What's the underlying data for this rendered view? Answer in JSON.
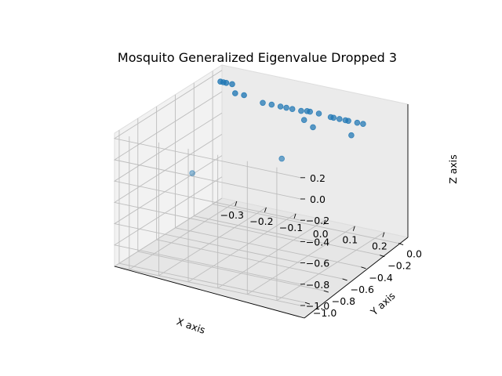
{
  "chart_data": {
    "type": "scatter",
    "title": "Mosquito Generalized Eigenvalue Dropped 3",
    "xlabel": "X axis",
    "ylabel": "Y axis",
    "zlabel": "Z axis",
    "xlim": [
      -0.35,
      0.28
    ],
    "ylim": [
      -1.05,
      0.1
    ],
    "zlim": [
      -1.0,
      0.25
    ],
    "xticks": [
      "−0.3",
      "−0.2",
      "−0.1",
      "0.0",
      "0.1",
      "0.2"
    ],
    "yticks": [
      "−1.0",
      "−0.8",
      "−0.6",
      "−0.4",
      "−0.2",
      "0.0"
    ],
    "zticks": [
      "−1.0",
      "−0.8",
      "−0.6",
      "−0.4",
      "−0.2",
      "0.0",
      "0.2"
    ],
    "grid": true,
    "color": "#1f77b4",
    "points": [
      {
        "x": -0.33,
        "y": 0.02,
        "z": 0.15
      },
      {
        "x": -0.32,
        "y": 0.02,
        "z": 0.15
      },
      {
        "x": -0.31,
        "y": 0.02,
        "z": 0.15
      },
      {
        "x": -0.29,
        "y": 0.02,
        "z": 0.15
      },
      {
        "x": -0.28,
        "y": 0.02,
        "z": 0.07
      },
      {
        "x": -0.25,
        "y": 0.02,
        "z": 0.07
      },
      {
        "x": -0.18,
        "y": 0.0,
        "z": 0.05
      },
      {
        "x": -0.15,
        "y": 0.0,
        "z": 0.05
      },
      {
        "x": -0.12,
        "y": 0.0,
        "z": 0.05
      },
      {
        "x": -0.1,
        "y": 0.0,
        "z": 0.05
      },
      {
        "x": -0.08,
        "y": 0.0,
        "z": 0.05
      },
      {
        "x": -0.05,
        "y": 0.0,
        "z": 0.05
      },
      {
        "x": -0.03,
        "y": 0.0,
        "z": 0.06
      },
      {
        "x": -0.02,
        "y": 0.0,
        "z": 0.06
      },
      {
        "x": 0.01,
        "y": 0.0,
        "z": 0.06
      },
      {
        "x": 0.05,
        "y": 0.0,
        "z": 0.05
      },
      {
        "x": 0.06,
        "y": 0.0,
        "z": 0.05
      },
      {
        "x": 0.08,
        "y": 0.0,
        "z": 0.05
      },
      {
        "x": 0.1,
        "y": 0.0,
        "z": 0.05
      },
      {
        "x": 0.11,
        "y": 0.0,
        "z": 0.05
      },
      {
        "x": 0.14,
        "y": 0.0,
        "z": 0.05
      },
      {
        "x": 0.16,
        "y": 0.0,
        "z": 0.05
      },
      {
        "x": -0.04,
        "y": 0.0,
        "z": -0.03
      },
      {
        "x": -0.01,
        "y": 0.0,
        "z": -0.08
      },
      {
        "x": 0.12,
        "y": 0.0,
        "z": -0.08
      },
      {
        "x": -0.1,
        "y": -0.05,
        "z": -0.4
      },
      {
        "x": -0.15,
        "y": -0.85,
        "z": -0.12
      }
    ]
  }
}
